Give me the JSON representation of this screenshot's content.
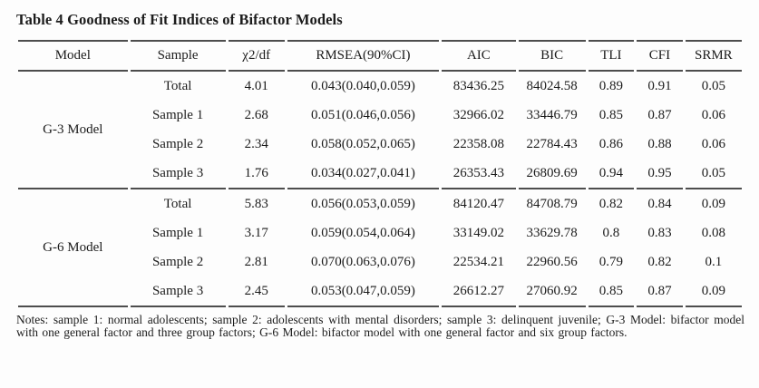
{
  "title": "Table 4 Goodness of Fit Indices of Bifactor Models",
  "table": {
    "columns": [
      "Model",
      "Sample",
      "χ2/df",
      "RMSEA(90%CI)",
      "AIC",
      "BIC",
      "TLI",
      "CFI",
      "SRMR"
    ],
    "column_widths_pct": [
      15.5,
      13.5,
      8,
      21.5,
      10.5,
      9.5,
      6.5,
      6.5,
      8
    ],
    "groups": [
      {
        "model": "G-3 Model",
        "rows": [
          [
            "Total",
            "4.01",
            "0.043(0.040,0.059)",
            "83436.25",
            "84024.58",
            "0.89",
            "0.91",
            "0.05"
          ],
          [
            "Sample 1",
            "2.68",
            "0.051(0.046,0.056)",
            "32966.02",
            "33446.79",
            "0.85",
            "0.87",
            "0.06"
          ],
          [
            "Sample 2",
            "2.34",
            "0.058(0.052,0.065)",
            "22358.08",
            "22784.43",
            "0.86",
            "0.88",
            "0.06"
          ],
          [
            "Sample 3",
            "1.76",
            "0.034(0.027,0.041)",
            "26353.43",
            "26809.69",
            "0.94",
            "0.95",
            "0.05"
          ]
        ]
      },
      {
        "model": "G-6 Model",
        "rows": [
          [
            "Total",
            "5.83",
            "0.056(0.053,0.059)",
            "84120.47",
            "84708.79",
            "0.82",
            "0.84",
            "0.09"
          ],
          [
            "Sample 1",
            "3.17",
            "0.059(0.054,0.064)",
            "33149.02",
            "33629.78",
            "0.8",
            "0.83",
            "0.08"
          ],
          [
            "Sample 2",
            "2.81",
            "0.070(0.063,0.076)",
            "22534.21",
            "22960.56",
            "0.79",
            "0.82",
            "0.1"
          ],
          [
            "Sample 3",
            "2.45",
            "0.053(0.047,0.059)",
            "26612.27",
            "27060.92",
            "0.85",
            "0.87",
            "0.09"
          ]
        ]
      }
    ]
  },
  "notes": "Notes: sample 1: normal adolescents; sample 2: adolescents with mental disorders; sample 3: delinquent juvenile; G-3 Model: bifactor model with one general factor and three group factors; G-6 Model: bifactor model with one general factor and six group factors.",
  "colors": {
    "background": "#fdfdfd",
    "text": "#1c1c1c",
    "rule": "#4d4d4d"
  }
}
